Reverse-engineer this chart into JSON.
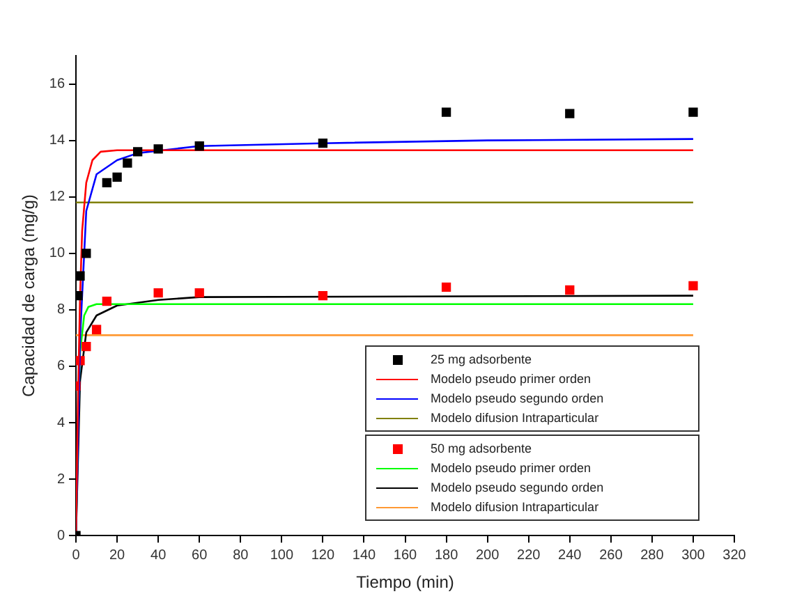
{
  "chart_data": {
    "type": "line",
    "xlabel": "Tiempo (min)",
    "ylabel": "Capacidad de carga (mg/g)",
    "xlim": [
      0,
      320
    ],
    "xticks": [
      0,
      20,
      40,
      60,
      80,
      100,
      120,
      140,
      160,
      180,
      200,
      220,
      240,
      260,
      280,
      300,
      320
    ],
    "ylim": [
      0,
      17
    ],
    "yticks": [
      0,
      2,
      4,
      6,
      8,
      10,
      12,
      14,
      16
    ],
    "grid": false,
    "legend": "bottom right",
    "series": [
      {
        "name": "25 mg adsorbente",
        "type": "scatter",
        "marker": "square",
        "color": "#000000",
        "x": [
          0,
          1,
          2,
          5,
          15,
          20,
          25,
          30,
          40,
          60,
          120,
          180,
          240,
          300
        ],
        "values": [
          0,
          8.5,
          9.2,
          10,
          12.5,
          12.7,
          13.2,
          13.6,
          13.7,
          13.8,
          13.9,
          15.0,
          14.95,
          15.0
        ]
      },
      {
        "name": "Modelo pseudo primer orden",
        "marker": "none",
        "color": "#ff0000",
        "x": [
          0,
          1,
          2,
          3,
          5,
          8,
          12,
          20,
          300
        ],
        "values": [
          0,
          5,
          8.5,
          10.8,
          12.5,
          13.3,
          13.6,
          13.65,
          13.65
        ]
      },
      {
        "name": "Modelo pseudo segundo orden",
        "marker": "none",
        "color": "#0000ff",
        "x": [
          0,
          1,
          2,
          5,
          10,
          20,
          30,
          60,
          120,
          200,
          300
        ],
        "values": [
          0,
          3.5,
          7,
          11.5,
          12.8,
          13.3,
          13.55,
          13.8,
          13.9,
          14.0,
          14.05
        ]
      },
      {
        "name": "Modelo difusion Intraparticular",
        "marker": "none",
        "color": "#808000",
        "x": [
          0,
          300
        ],
        "values": [
          11.8,
          11.8
        ]
      },
      {
        "name": "50 mg adsorbente",
        "type": "scatter",
        "marker": "square",
        "color": "#ff0000",
        "x": [
          0,
          2,
          5,
          10,
          15,
          40,
          60,
          120,
          180,
          240,
          300
        ],
        "values": [
          5.3,
          6.2,
          6.7,
          7.3,
          8.3,
          8.6,
          8.6,
          8.5,
          8.8,
          8.7,
          8.85
        ]
      },
      {
        "name": "Modelo pseudo primer orden",
        "marker": "none",
        "color": "#00ff00",
        "x": [
          0,
          1,
          2,
          4,
          6,
          10,
          300
        ],
        "values": [
          0,
          4,
          6.5,
          7.8,
          8.1,
          8.2,
          8.2
        ]
      },
      {
        "name": "Modelo pseudo segundo orden",
        "marker": "none",
        "color": "#000000",
        "x": [
          0,
          2,
          5,
          10,
          20,
          40,
          60,
          300
        ],
        "values": [
          0,
          5.5,
          7.2,
          7.8,
          8.15,
          8.35,
          8.45,
          8.5
        ]
      },
      {
        "name": "Modelo difusion Intraparticular",
        "marker": "none",
        "color": "#ff9933",
        "x": [
          0,
          300
        ],
        "values": [
          7.1,
          7.1
        ]
      }
    ]
  }
}
